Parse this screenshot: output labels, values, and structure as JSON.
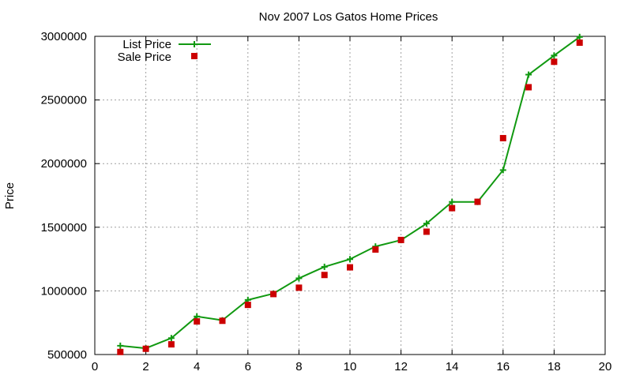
{
  "chart_data": {
    "type": "line",
    "title": "Nov 2007 Los Gatos Home Prices",
    "xlabel": "",
    "ylabel": "Price",
    "xlim": [
      0,
      20
    ],
    "ylim": [
      500000,
      3000000
    ],
    "xticks": [
      "0",
      "2",
      "4",
      "6",
      "8",
      "10",
      "12",
      "14",
      "16",
      "18",
      "20"
    ],
    "yticks": [
      "500000",
      "1000000",
      "1500000",
      "2000000",
      "2500000",
      "3000000"
    ],
    "grid": true,
    "legend_position": "top-left",
    "series": [
      {
        "name": "List Price",
        "style": "lines+points",
        "marker": "plus",
        "color": "#119911",
        "x": [
          1,
          2,
          3,
          4,
          5,
          6,
          7,
          8,
          9,
          10,
          11,
          12,
          13,
          14,
          15,
          16,
          17,
          18,
          19
        ],
        "y": [
          569000,
          549000,
          629000,
          799000,
          769000,
          929000,
          979000,
          1099000,
          1189000,
          1249000,
          1349000,
          1399000,
          1529000,
          1699000,
          1699000,
          1949000,
          2699000,
          2849000,
          2995000
        ]
      },
      {
        "name": "Sale Price",
        "style": "points",
        "marker": "square",
        "color": "#cc0000",
        "x": [
          1,
          2,
          3,
          4,
          5,
          6,
          7,
          8,
          9,
          10,
          11,
          12,
          13,
          14,
          15,
          16,
          17,
          18,
          19
        ],
        "y": [
          520000,
          545000,
          580000,
          760000,
          765000,
          890000,
          975000,
          1025000,
          1125000,
          1185000,
          1325000,
          1400000,
          1465000,
          1650000,
          1700000,
          2200000,
          2600000,
          2800000,
          2950000
        ]
      }
    ]
  }
}
